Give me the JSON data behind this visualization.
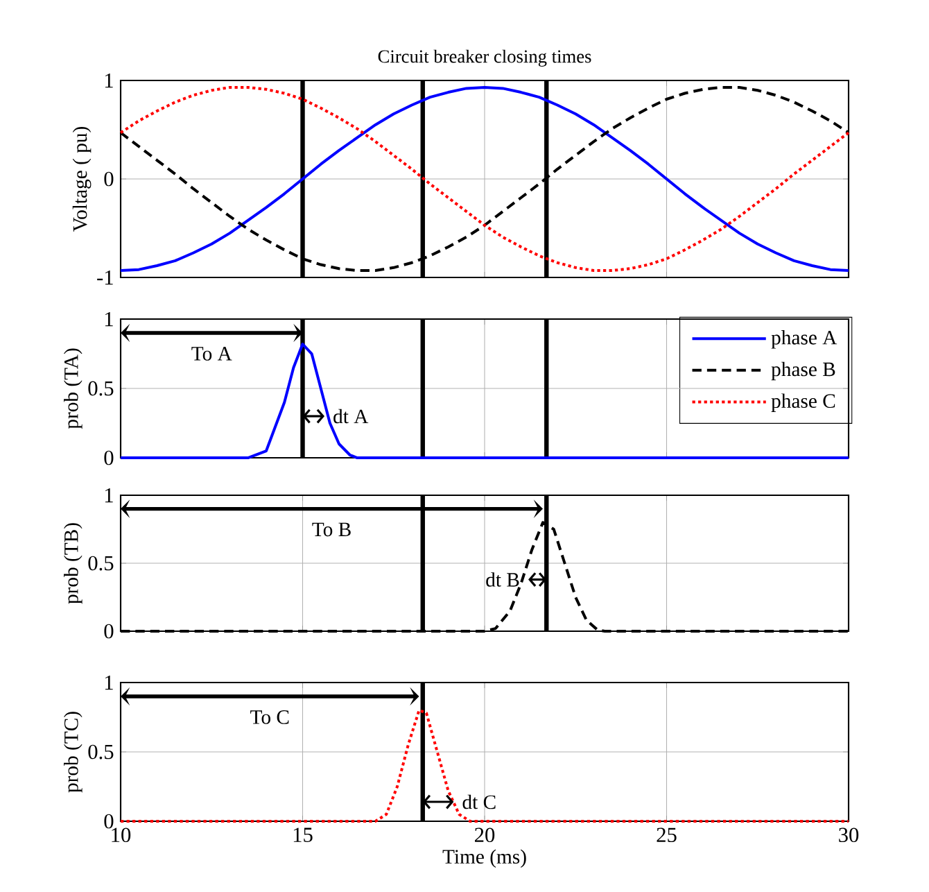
{
  "chart_data": [
    {
      "type": "line",
      "title": "Circuit breaker closing times",
      "ylabel": "Voltage ( pu)",
      "x": [
        10,
        10.5,
        11,
        11.5,
        12,
        12.5,
        13,
        13.5,
        14,
        14.5,
        15,
        15.5,
        16,
        16.5,
        17,
        17.5,
        18,
        18.5,
        19,
        19.5,
        20,
        20.5,
        21,
        21.5,
        22,
        22.5,
        23,
        23.5,
        24,
        24.5,
        25,
        25.5,
        26,
        26.5,
        27,
        27.5,
        28,
        28.5,
        29,
        29.5,
        30
      ],
      "series": [
        {
          "name": "phase A",
          "color": "#0000ff",
          "line_style": "solid",
          "values": [
            -0.93,
            -0.92,
            -0.88,
            -0.83,
            -0.75,
            -0.66,
            -0.55,
            -0.42,
            -0.29,
            -0.15,
            0,
            0.15,
            0.29,
            0.42,
            0.55,
            0.66,
            0.75,
            0.83,
            0.88,
            0.92,
            0.93,
            0.92,
            0.88,
            0.83,
            0.75,
            0.66,
            0.55,
            0.42,
            0.29,
            0.15,
            0,
            -0.15,
            -0.29,
            -0.42,
            -0.55,
            -0.66,
            -0.75,
            -0.83,
            -0.88,
            -0.92,
            -0.93
          ]
        },
        {
          "name": "phase B",
          "color": "#000000",
          "line_style": "dashed",
          "values": [
            0.47,
            0.33,
            0.19,
            0.05,
            -0.1,
            -0.24,
            -0.38,
            -0.51,
            -0.62,
            -0.72,
            -0.81,
            -0.87,
            -0.91,
            -0.93,
            -0.93,
            -0.9,
            -0.85,
            -0.78,
            -0.69,
            -0.59,
            -0.47,
            -0.33,
            -0.19,
            -0.05,
            0.1,
            0.24,
            0.38,
            0.51,
            0.62,
            0.72,
            0.81,
            0.87,
            0.91,
            0.93,
            0.93,
            0.9,
            0.85,
            0.78,
            0.69,
            0.59,
            0.47
          ]
        },
        {
          "name": "phase C",
          "color": "#ff0000",
          "line_style": "dotted",
          "values": [
            0.47,
            0.59,
            0.69,
            0.78,
            0.85,
            0.9,
            0.93,
            0.93,
            0.91,
            0.87,
            0.81,
            0.72,
            0.62,
            0.51,
            0.38,
            0.24,
            0.1,
            -0.05,
            -0.19,
            -0.33,
            -0.47,
            -0.59,
            -0.69,
            -0.78,
            -0.85,
            -0.9,
            -0.93,
            -0.93,
            -0.91,
            -0.87,
            -0.81,
            -0.72,
            -0.62,
            -0.51,
            -0.38,
            -0.24,
            -0.1,
            0.05,
            0.19,
            0.33,
            0.47
          ]
        }
      ],
      "xlim": [
        10,
        30
      ],
      "xticks": [
        10,
        15,
        20,
        25,
        30
      ],
      "ylim": [
        -1,
        1
      ],
      "yticks": [
        -1,
        0,
        1
      ],
      "grid": true,
      "legend": "bottom right",
      "tick_labels": "y",
      "ref_lines": [
        {
          "axis": "x",
          "value": 15,
          "color": "#000000"
        },
        {
          "axis": "x",
          "value": 18.3,
          "color": "#000000"
        },
        {
          "axis": "x",
          "value": 21.7,
          "color": "#000000"
        }
      ]
    },
    {
      "type": "line",
      "ylabel": "prob (TA)",
      "x": [
        10,
        13.5,
        14,
        14.5,
        14.75,
        15,
        15.25,
        15.5,
        15.75,
        16,
        16.3,
        16.5,
        30
      ],
      "series": [
        {
          "color": "#0000ff",
          "line_style": "solid",
          "values": [
            0,
            0,
            0.05,
            0.4,
            0.65,
            0.82,
            0.75,
            0.5,
            0.25,
            0.1,
            0.02,
            0,
            0
          ]
        }
      ],
      "xlim": [
        10,
        30
      ],
      "xticks": [
        10,
        15,
        20,
        25,
        30
      ],
      "ylim": [
        0,
        1
      ],
      "yticks": [
        0,
        0.5,
        1
      ],
      "grid": true,
      "tick_labels": "y",
      "ref_lines": [
        {
          "axis": "x",
          "value": 15,
          "color": "#000000"
        },
        {
          "axis": "x",
          "value": 18.3,
          "color": "#000000"
        },
        {
          "axis": "x",
          "value": 21.7,
          "color": "#000000"
        }
      ],
      "annotations": [
        "To A",
        {
          "text": "dt A",
          "x": 15.6,
          "y": 0.3
        }
      ]
    },
    {
      "type": "line",
      "ylabel": "prob (TB)",
      "x": [
        10,
        20,
        20.3,
        20.7,
        21,
        21.3,
        21.6,
        21.9,
        22.2,
        22.5,
        22.8,
        23.1,
        23.3,
        30
      ],
      "series": [
        {
          "color": "#000000",
          "line_style": "dashed",
          "values": [
            0,
            0,
            0.02,
            0.15,
            0.35,
            0.6,
            0.8,
            0.75,
            0.5,
            0.25,
            0.08,
            0.01,
            0,
            0
          ]
        }
      ],
      "xlim": [
        10,
        30
      ],
      "xticks": [
        10,
        15,
        20,
        25,
        30
      ],
      "ylim": [
        0,
        1
      ],
      "yticks": [
        0,
        0.5,
        1
      ],
      "grid": true,
      "tick_labels": "y",
      "ref_lines": [
        {
          "axis": "x",
          "value": 18.3,
          "color": "#000000"
        },
        {
          "axis": "x",
          "value": 21.7,
          "color": "#000000"
        }
      ],
      "annotations": [
        "To B",
        {
          "text": "dt B",
          "x": 21.2,
          "y": 0.38
        }
      ]
    },
    {
      "type": "line",
      "ylabel": "prob (TC)",
      "xlabel": "Time (ms)",
      "x": [
        10,
        17,
        17.3,
        17.6,
        17.9,
        18.2,
        18.4,
        18.7,
        19,
        19.3,
        19.6,
        30
      ],
      "series": [
        {
          "color": "#ff0000",
          "line_style": "dotted",
          "values": [
            0,
            0,
            0.05,
            0.25,
            0.55,
            0.8,
            0.78,
            0.5,
            0.22,
            0.05,
            0,
            0
          ]
        }
      ],
      "xlim": [
        10,
        30
      ],
      "xticks": [
        10,
        15,
        20,
        25,
        30
      ],
      "ylim": [
        0,
        1
      ],
      "yticks": [
        0,
        0.5,
        1
      ],
      "grid": true,
      "ref_lines": [
        {
          "axis": "x",
          "value": 18.3,
          "color": "#000000"
        }
      ],
      "annotations": [
        "To C",
        {
          "text": "dt C",
          "x": 19.15,
          "y": 0.14
        }
      ]
    }
  ]
}
